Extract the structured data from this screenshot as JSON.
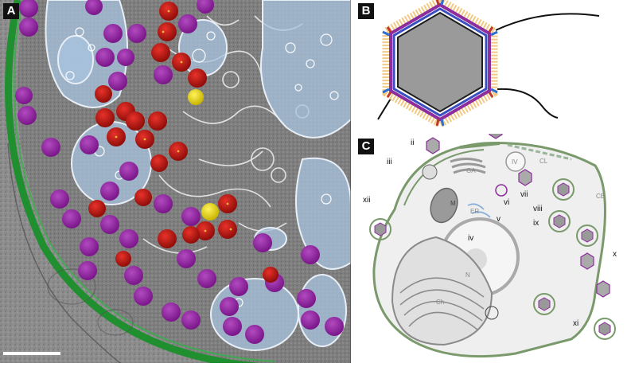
{
  "panels": {
    "a": {
      "label": "A"
    },
    "b": {
      "label": "B"
    },
    "c": {
      "label": "C",
      "stages": [
        "i",
        "ii",
        "iii",
        "iv",
        "v",
        "vi",
        "vii",
        "viii",
        "ix",
        "x",
        "xi",
        "xii"
      ],
      "organelles": {
        "sm": "SM",
        "cl": "CL",
        "ce": "CE",
        "ga": "GA",
        "iv_organelle": "IV",
        "m": "M",
        "er": "ER",
        "n": "N",
        "ch": "Ch"
      }
    }
  },
  "colors": {
    "cell_wall": "#1f8f2f",
    "capsid_purple": "#8e1d9c",
    "capsid_red": "#c0150f",
    "capsid_yellow": "#e8d400",
    "membrane_blue": "#a9c4e0",
    "capsid_gray": "#9a9a9a",
    "cell_outline": "#7a9a6c"
  }
}
